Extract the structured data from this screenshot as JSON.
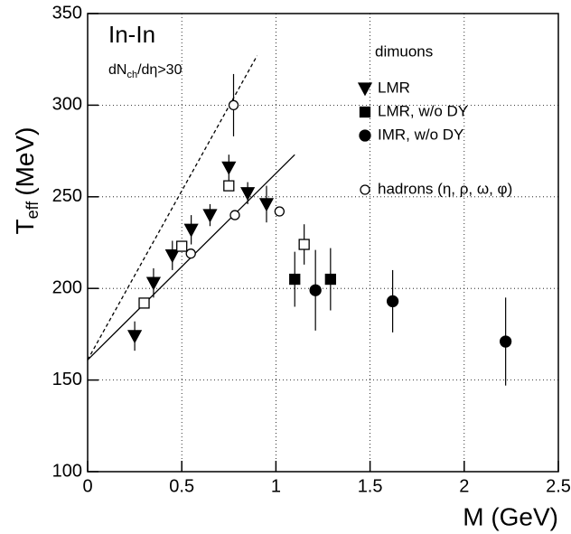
{
  "chart_data": {
    "type": "scatter",
    "x_label": "M (GeV)",
    "y_label": {
      "main": "T",
      "sub": "eff",
      "unit": "(MeV)"
    },
    "annotations": {
      "system": "In-In",
      "cut": {
        "main": "dN",
        "sub": "ch",
        "rest": "/dη>30"
      }
    },
    "legend_title": "dimuons",
    "xlim": [
      0,
      2.5
    ],
    "xticks": [
      0,
      0.5,
      1,
      1.5,
      2,
      2.5
    ],
    "ylim": [
      100,
      350
    ],
    "yticks": [
      100,
      150,
      200,
      250,
      300,
      350
    ],
    "grid": true,
    "series": [
      {
        "name": "LMR",
        "marker": "triangle-down",
        "filled": true,
        "color": "#000000",
        "x": [
          0.25,
          0.35,
          0.45,
          0.55,
          0.65,
          0.75,
          0.85,
          0.95
        ],
        "values": [
          174,
          203,
          218,
          232,
          240,
          266,
          252,
          246
        ],
        "errors": [
          8,
          8,
          8,
          8,
          6,
          7,
          6,
          10
        ]
      },
      {
        "name": "LMR, w/o DY",
        "marker": "square",
        "filled": true,
        "color": "#000000",
        "x": [
          1.1,
          1.29
        ],
        "values": [
          205,
          205
        ],
        "errors": [
          15,
          17
        ]
      },
      {
        "name": "IMR,  w/o DY",
        "marker": "circle",
        "filled": true,
        "color": "#000000",
        "x": [
          1.21,
          1.62,
          2.22
        ],
        "values": [
          199,
          193,
          171
        ],
        "errors": [
          22,
          17,
          24
        ]
      },
      {
        "name": "hadrons (η, ρ, ω, φ)",
        "marker": "circle",
        "filled": false,
        "color": "#000000",
        "x": [
          0.548,
          0.775,
          0.782,
          1.019
        ],
        "values": [
          219,
          300,
          240,
          242
        ],
        "errors": [
          null,
          17,
          null,
          null
        ]
      },
      {
        "marker": "square",
        "filled": false,
        "color": "#000000",
        "x": [
          0.3,
          0.5,
          0.75,
          1.15
        ],
        "values": [
          192,
          223,
          256,
          224
        ],
        "errors": [
          null,
          null,
          null,
          11
        ]
      }
    ],
    "lines": [
      {
        "style": "solid",
        "x": [
          0,
          1.1
        ],
        "values": [
          161,
          273
        ]
      },
      {
        "style": "dashed",
        "x": [
          0,
          0.9
        ],
        "values": [
          161,
          327
        ]
      }
    ]
  }
}
